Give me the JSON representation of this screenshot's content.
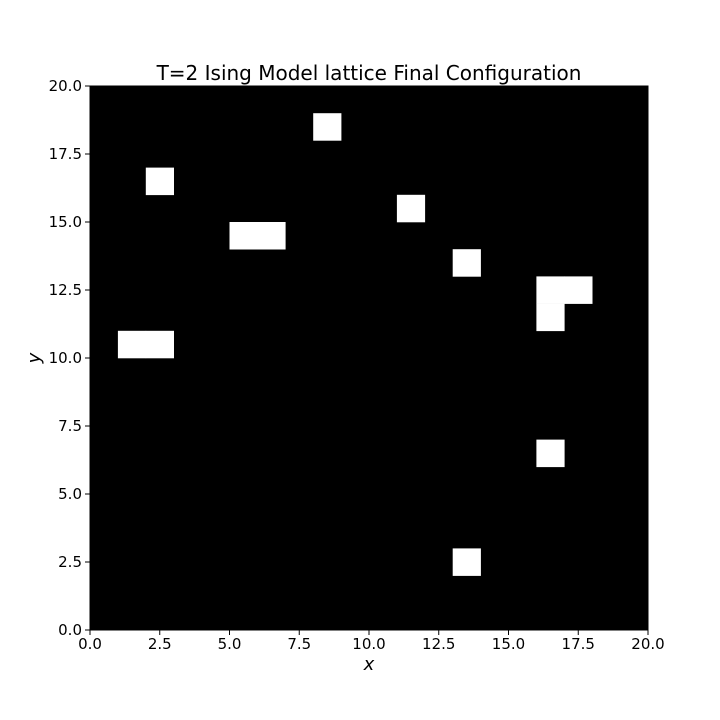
{
  "chart_data": {
    "type": "heatmap",
    "title": "T=2 Ising Model lattice Final Configuration",
    "xlabel": "x",
    "ylabel": "y",
    "xlim": [
      0,
      20
    ],
    "ylim": [
      0,
      20
    ],
    "grid": false,
    "legend": "none",
    "xticks": [
      "0.0",
      "2.5",
      "5.0",
      "7.5",
      "10.0",
      "12.5",
      "15.0",
      "17.5",
      "20.0"
    ],
    "yticks": [
      "0.0",
      "2.5",
      "5.0",
      "7.5",
      "10.0",
      "12.5",
      "15.0",
      "17.5",
      "20.0"
    ],
    "lattice_size": 20,
    "background_spin": -1,
    "up_spin_cells": [
      {
        "x": 8,
        "y": 18
      },
      {
        "x": 2,
        "y": 16
      },
      {
        "x": 11,
        "y": 15
      },
      {
        "x": 5,
        "y": 14
      },
      {
        "x": 6,
        "y": 14
      },
      {
        "x": 13,
        "y": 13
      },
      {
        "x": 16,
        "y": 12
      },
      {
        "x": 17,
        "y": 12
      },
      {
        "x": 16,
        "y": 11
      },
      {
        "x": 1,
        "y": 10
      },
      {
        "x": 2,
        "y": 10
      },
      {
        "x": 16,
        "y": 6
      },
      {
        "x": 13,
        "y": 2
      }
    ],
    "colors": {
      "down": "#000000",
      "up": "#ffffff"
    }
  }
}
